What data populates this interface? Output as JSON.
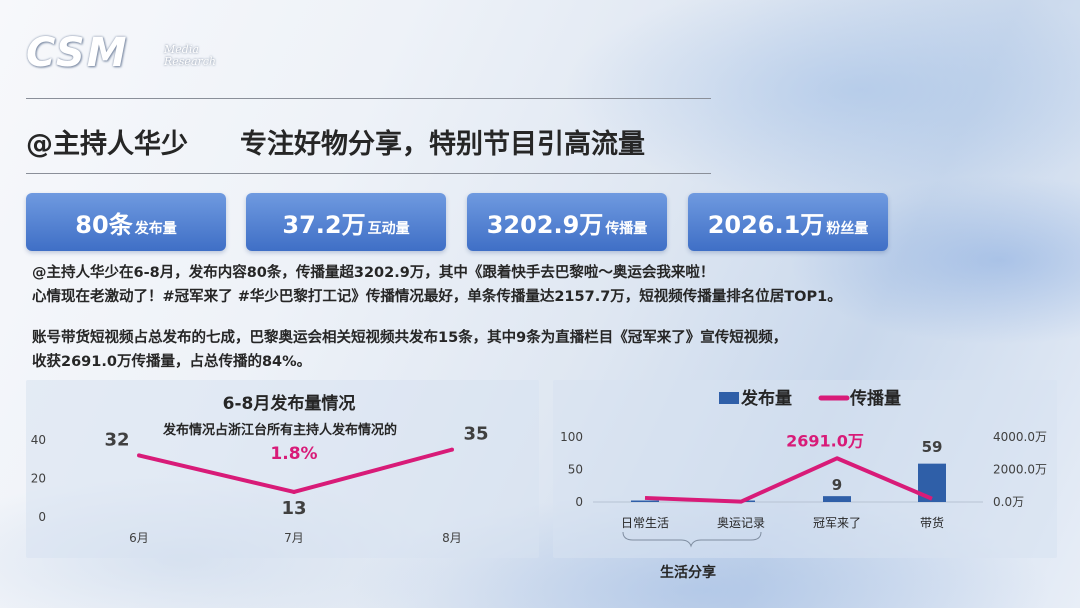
{
  "logo": {
    "main": "CSM",
    "sub1": "Media",
    "sub2": "Research"
  },
  "header": {
    "title": "@主持人华少",
    "slogan": "专注好物分享，特别节目引高流量"
  },
  "stats": [
    {
      "value": "80条",
      "label": "发布量"
    },
    {
      "value": "37.2万",
      "label": "互动量"
    },
    {
      "value": "3202.9万",
      "label": "传播量"
    },
    {
      "value": "2026.1万",
      "label": "粉丝量"
    }
  ],
  "paragraphs": {
    "p1_line1": "@主持人华少在6-8月，发布内容80条，传播量超3202.9万，其中《跟着快手去巴黎啦～奥运会我来啦！",
    "p1_line2": "心情现在老激动了！#冠军来了 #华少巴黎打工记》传播情况最好，单条传播量达2157.7万，短视频传播量排名位居TOP1。",
    "p2_line1": "账号带货短视频占总发布的七成，巴黎奥运会相关短视频共发布15条，其中9条为直播栏目《冠军来了》宣传短视频，",
    "p2_line2": "收获2691.0万传播量，占总传播的84%。"
  },
  "colors": {
    "accent": "#d81b78",
    "bar": "#2f5fa8",
    "stat_bg": "#4a78cc"
  },
  "chart_data": [
    {
      "type": "line",
      "title": "6-8月发布量情况",
      "subtitle": "发布情况占浙江台所有主持人发布情况的",
      "highlight": "1.8%",
      "categories": [
        "6月",
        "7月",
        "8月"
      ],
      "series": [
        {
          "values": [
            32,
            13,
            35
          ]
        }
      ],
      "ylim": [
        0,
        40
      ],
      "yticks": [
        "0",
        "20",
        "40"
      ],
      "grid": false
    },
    {
      "type": "bar+line",
      "categories": [
        "日常生活",
        "奥运记录",
        "冠军来了",
        "带货"
      ],
      "group_label": "生活分享",
      "group_span": [
        "日常生活",
        "奥运记录"
      ],
      "series": [
        {
          "name": "发布量",
          "type": "bar",
          "axis": "left",
          "values": [
            1,
            0,
            9,
            59
          ],
          "labels": [
            "",
            "",
            "9",
            "59"
          ]
        },
        {
          "name": "传播量",
          "type": "line",
          "axis": "right",
          "values": [
            250,
            20,
            2691.0,
            200
          ],
          "labels": [
            "",
            "",
            "2691.0万",
            ""
          ]
        }
      ],
      "ylim_left": [
        0,
        100
      ],
      "yticks_left": [
        "0",
        "50",
        "100"
      ],
      "ylim_right": [
        0,
        4000
      ],
      "yticks_right": [
        "0.0万",
        "2000.0万",
        "4000.0万"
      ],
      "legend": "top"
    }
  ]
}
